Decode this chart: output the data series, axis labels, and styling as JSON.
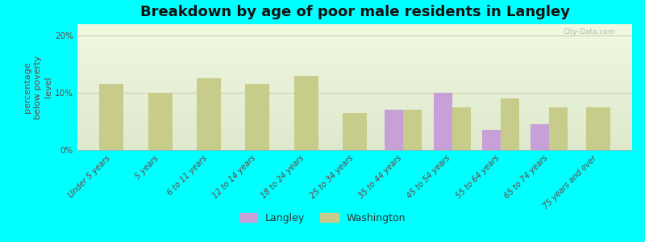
{
  "title": "Breakdown by age of poor male residents in Langley",
  "ylabel": "percentage\nbelow poverty\nlevel",
  "background_color": "#00ffff",
  "plot_bg_color_top": "#dde8cc",
  "plot_bg_color_bottom": "#f0f8e0",
  "categories": [
    "Under 5 years",
    "5 years",
    "6 to 11 years",
    "12 to 14 years",
    "18 to 24 years",
    "25 to 34 years",
    "35 to 44 years",
    "45 to 54 years",
    "55 to 64 years",
    "65 to 74 years",
    "75 years and over"
  ],
  "langley_values": [
    null,
    null,
    null,
    null,
    null,
    null,
    7.0,
    10.0,
    3.5,
    4.5,
    null
  ],
  "washington_values": [
    11.5,
    10.0,
    12.5,
    11.5,
    13.0,
    6.5,
    7.0,
    7.5,
    9.0,
    7.5,
    7.5
  ],
  "langley_color": "#c8a0d8",
  "washington_color": "#c8cc8a",
  "ylim": [
    0,
    22
  ],
  "yticks": [
    0,
    10,
    20
  ],
  "ytick_labels": [
    "0%",
    "10%",
    "20%"
  ],
  "bar_width": 0.38,
  "title_fontsize": 13,
  "axis_label_fontsize": 8,
  "tick_fontsize": 7,
  "watermark": "City-Data.com",
  "legend_labels": [
    "Langley",
    "Washington"
  ]
}
